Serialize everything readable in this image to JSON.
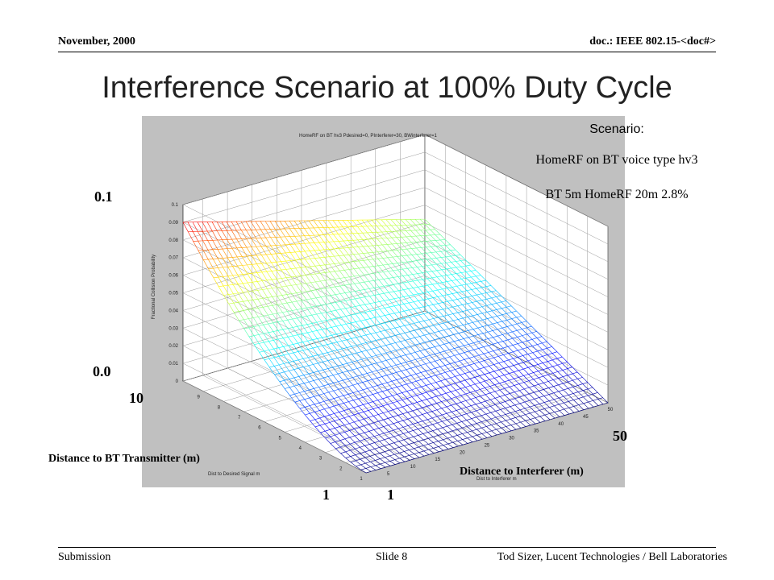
{
  "header": {
    "date": "November, 2000",
    "doc": "doc.: IEEE 802.15-<doc#>"
  },
  "slide_title": "Interference Scenario at 100% Duty Cycle",
  "scenario": {
    "heading": "Scenario:",
    "line1": "HomeRF on BT voice type hv3",
    "line2": "BT 5m  HomeRF 20m  2.8%"
  },
  "plot": {
    "inner_title": "HomeRF on BT hv3  Pdesired=0,  PInterferer=30,  BWinterferer=1",
    "z_label": "Fractional Collision Probability",
    "x_label": "Dist to Desired Signal m",
    "y_label": "Dist to Interferer m",
    "z_ticks": [
      "0",
      "0.01",
      "0.02",
      "0.03",
      "0.04",
      "0.05",
      "0.06",
      "0.07",
      "0.08",
      "0.09",
      "0.1"
    ],
    "x_ticks": [
      "1",
      "2",
      "3",
      "4",
      "5",
      "6",
      "7",
      "8",
      "9"
    ],
    "y_ticks": [
      "5",
      "10",
      "15",
      "20",
      "25",
      "30",
      "35",
      "40",
      "45",
      "50"
    ]
  },
  "overlay": {
    "z_max": "0.1",
    "z_min": "0.0",
    "x_max": "10",
    "x_min": "1",
    "y_max": "50",
    "y_min": "1",
    "x_axis_label": "Distance to BT Transmitter (m)",
    "y_axis_label": "Distance to Interferer (m)"
  },
  "footer": {
    "left": "Submission",
    "center": "Slide 8",
    "right": "Tod Sizer, Lucent Technologies  / Bell Laboratories"
  },
  "chart_data": {
    "type": "surface",
    "title": "HomeRF on BT hv3  Pdesired=0,  PInterferer=30,  BWinterferer=1",
    "xlabel": "Dist to Desired Signal m",
    "ylabel": "Dist to Interferer m",
    "zlabel": "Fractional Collision Probability",
    "xlim": [
      1,
      10
    ],
    "ylim": [
      1,
      50
    ],
    "zlim": [
      0,
      0.1
    ],
    "grid": true,
    "colormap": "jet",
    "samples": [
      {
        "x": 10,
        "y": 1,
        "z": 0.09
      },
      {
        "x": 7,
        "y": 1,
        "z": 0.05
      },
      {
        "x": 5,
        "y": 1,
        "z": 0.04
      },
      {
        "x": 3,
        "y": 1,
        "z": 0.02
      },
      {
        "x": 1,
        "y": 1,
        "z": 0.0
      },
      {
        "x": 10,
        "y": 50,
        "z": 0.05
      },
      {
        "x": 1,
        "y": 50,
        "z": 0.0
      },
      {
        "x": 1,
        "y": 20,
        "z": 0.0
      }
    ]
  }
}
